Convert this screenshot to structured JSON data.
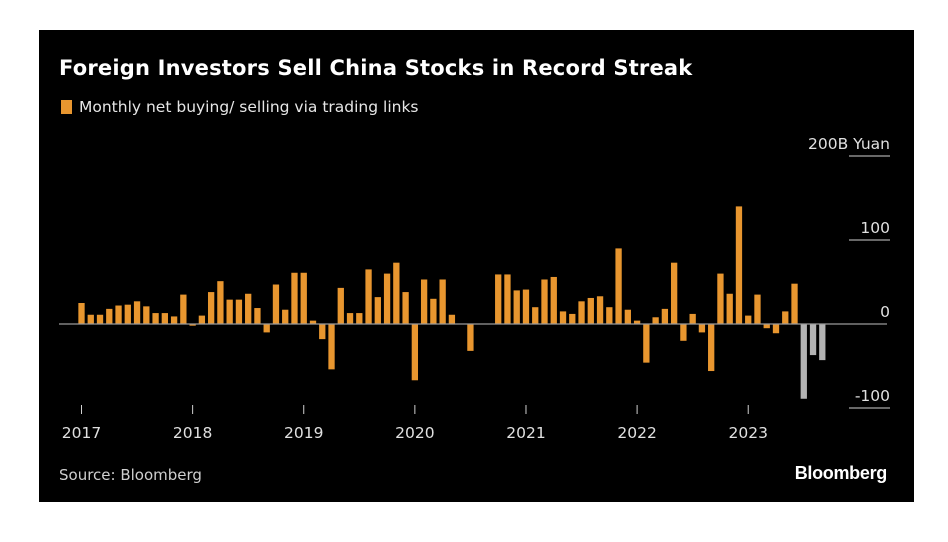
{
  "title": "Foreign Investors Sell China Stocks in Record Streak",
  "legend_label": "Monthly net buying/ selling via trading links",
  "source": "Source: Bloomberg",
  "brand": "Bloomberg",
  "colors": {
    "background": "#000000",
    "bar_positive": "#e8962f",
    "bar_highlight": "#b3b3b3",
    "text": "#ffffff"
  },
  "chart_data": {
    "type": "bar",
    "ylim": [
      -100,
      200
    ],
    "yticks": [
      {
        "value": 200,
        "label": "200B Yuan"
      },
      {
        "value": 100,
        "label": "100"
      },
      {
        "value": 0,
        "label": "0"
      },
      {
        "value": -100,
        "label": "-100"
      }
    ],
    "xticks": [
      "2017",
      "2018",
      "2019",
      "2020",
      "2021",
      "2022",
      "2023"
    ],
    "start": "2017-01",
    "values": [
      25,
      11,
      11,
      18,
      22,
      23,
      27,
      21,
      13,
      13,
      9,
      35,
      -2,
      10,
      38,
      51,
      29,
      29,
      36,
      19,
      -10,
      47,
      17,
      61,
      61,
      4,
      -18,
      -54,
      43,
      13,
      13,
      65,
      32,
      60,
      73,
      38,
      -67,
      53,
      30,
      53,
      11,
      0,
      -32,
      0,
      0,
      59,
      59,
      40,
      41,
      20,
      53,
      56,
      15,
      12,
      27,
      31,
      33,
      20,
      90,
      17,
      4,
      -46,
      8,
      18,
      73,
      -20,
      12,
      -10,
      -56,
      60,
      36,
      140,
      10,
      35,
      -5,
      -11,
      15,
      48,
      -89,
      -37,
      -43
    ],
    "highlight_last": 3
  }
}
